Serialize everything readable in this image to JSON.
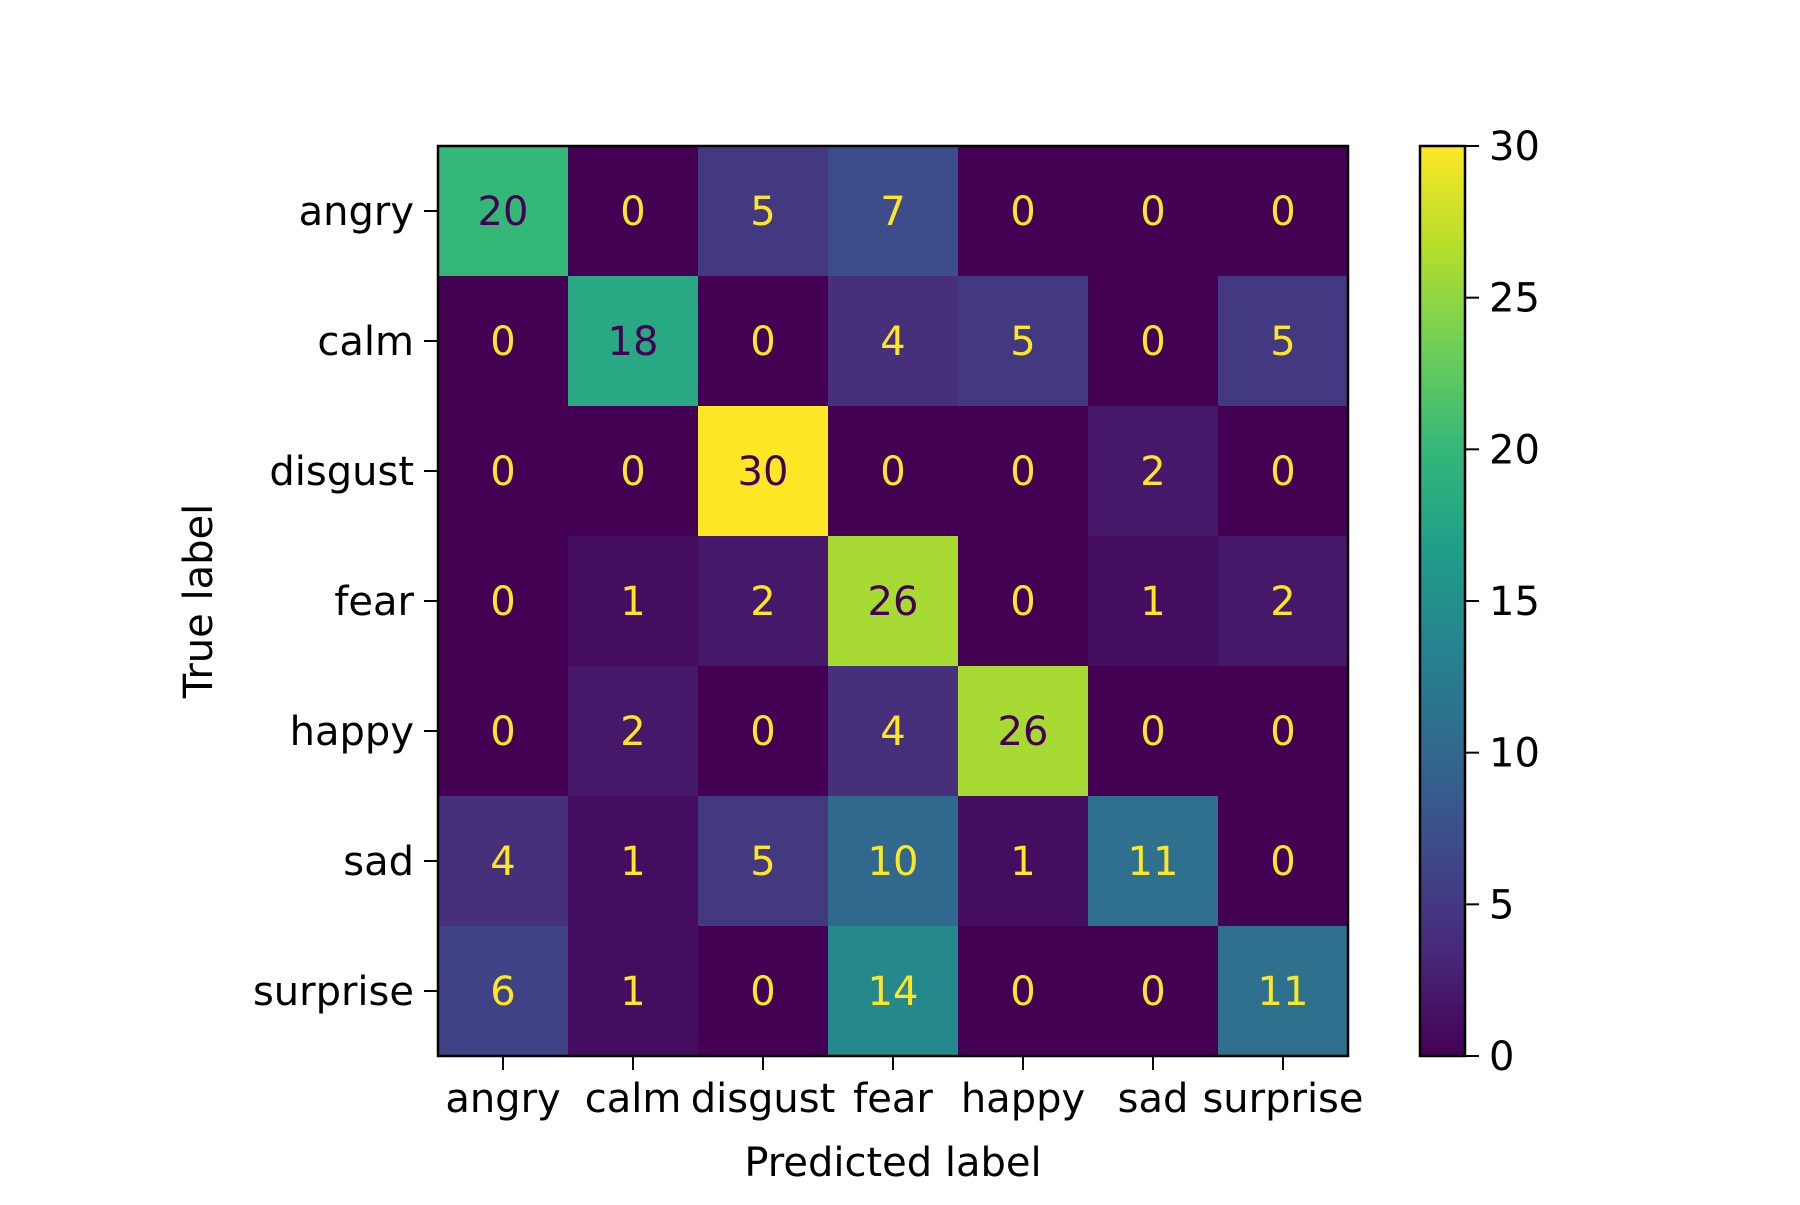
{
  "chart_data": {
    "type": "heatmap",
    "xlabel": "Predicted label",
    "ylabel": "True label",
    "x_categories": [
      "angry",
      "calm",
      "disgust",
      "fear",
      "happy",
      "sad",
      "surprise"
    ],
    "y_categories": [
      "angry",
      "calm",
      "disgust",
      "fear",
      "happy",
      "sad",
      "surprise"
    ],
    "values": [
      [
        20,
        0,
        5,
        7,
        0,
        0,
        0
      ],
      [
        0,
        18,
        0,
        4,
        5,
        0,
        5
      ],
      [
        0,
        0,
        30,
        0,
        0,
        2,
        0
      ],
      [
        0,
        1,
        2,
        26,
        0,
        1,
        2
      ],
      [
        0,
        2,
        0,
        4,
        26,
        0,
        0
      ],
      [
        4,
        1,
        5,
        10,
        1,
        11,
        0
      ],
      [
        6,
        1,
        0,
        14,
        0,
        0,
        11
      ]
    ],
    "colormap": "viridis",
    "vmin": 0,
    "vmax": 30,
    "colorbar_ticks": [
      0,
      5,
      10,
      15,
      20,
      25,
      30
    ],
    "grid": false,
    "legend": "colorbar-right",
    "label_colors": {
      "on_dark": "#fde725",
      "on_light": "#440154"
    }
  }
}
